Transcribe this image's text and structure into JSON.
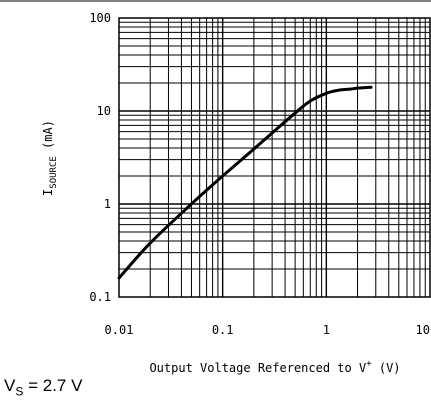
{
  "chart_data": {
    "type": "line",
    "x_scale": "log",
    "y_scale": "log",
    "xlim": [
      0.01,
      10
    ],
    "ylim": [
      0.1,
      100
    ],
    "xticks": [
      "0.01",
      "0.1",
      "1",
      "10.0"
    ],
    "yticks": [
      "0.1",
      "1",
      "10",
      "100"
    ],
    "xlabel": {
      "prefix": "Output Voltage Referenced to V",
      "sup": "+",
      "suffix": " (V)"
    },
    "ylabel": {
      "main": "I",
      "sub": "SOURCE",
      "suffix": " (mA)"
    },
    "grid": true,
    "series": [
      {
        "x": [
          0.01,
          0.02,
          0.05,
          0.1,
          0.2,
          0.3,
          0.5,
          0.7,
          1.0,
          1.3,
          1.7,
          2.0,
          2.7
        ],
        "y": [
          0.16,
          0.38,
          1.0,
          2.0,
          3.9,
          5.8,
          9.5,
          12.8,
          15.5,
          16.7,
          17.2,
          17.6,
          18.0
        ]
      }
    ]
  },
  "caption": {
    "main": "V",
    "sub": "S",
    "suffix": " = 2.7 V"
  }
}
